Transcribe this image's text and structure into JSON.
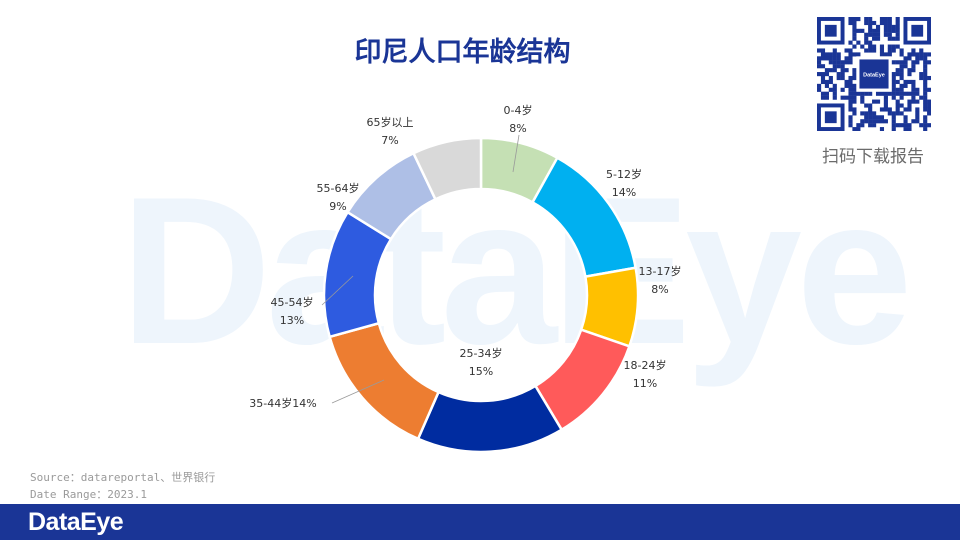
{
  "header": {
    "title": "印尼人口年龄结构"
  },
  "watermark": {
    "text": "DataEye"
  },
  "qr": {
    "caption": "扫码下载报告",
    "center_logo": "DataEye",
    "icon": "qr-code-icon"
  },
  "footer": {
    "source": "Source：datareportal、世界银行",
    "date_range": "Date Range：2023.1",
    "logo_text": "DataEye"
  },
  "colors": {
    "brand": "#1a3596",
    "slices": [
      "#c5e0b4",
      "#00b0f0",
      "#ffc000",
      "#ff5a5a",
      "#002ca0",
      "#ed7d31",
      "#2e5be0",
      "#aebfe6",
      "#d9d9d9"
    ]
  },
  "chart_data": {
    "type": "pie",
    "style": "donut",
    "title": "印尼人口年龄结构",
    "categories": [
      "0-4岁",
      "5-12岁",
      "13-17岁",
      "18-24岁",
      "25-34岁",
      "35-44岁",
      "45-54岁",
      "55-64岁",
      "65岁以上"
    ],
    "values": [
      8,
      14,
      8,
      11,
      15,
      14,
      13,
      9,
      7
    ],
    "value_labels": [
      "8%",
      "14%",
      "8%",
      "11%",
      "15%",
      "14%",
      "13%",
      "9%",
      "7%"
    ],
    "label_texts": [
      "0-4岁",
      "5-12岁",
      "13-17岁",
      "18-24岁",
      "25-34岁",
      "35-44岁14%",
      "45-54岁",
      "55-64岁",
      "65岁以上"
    ],
    "unit": "%"
  }
}
